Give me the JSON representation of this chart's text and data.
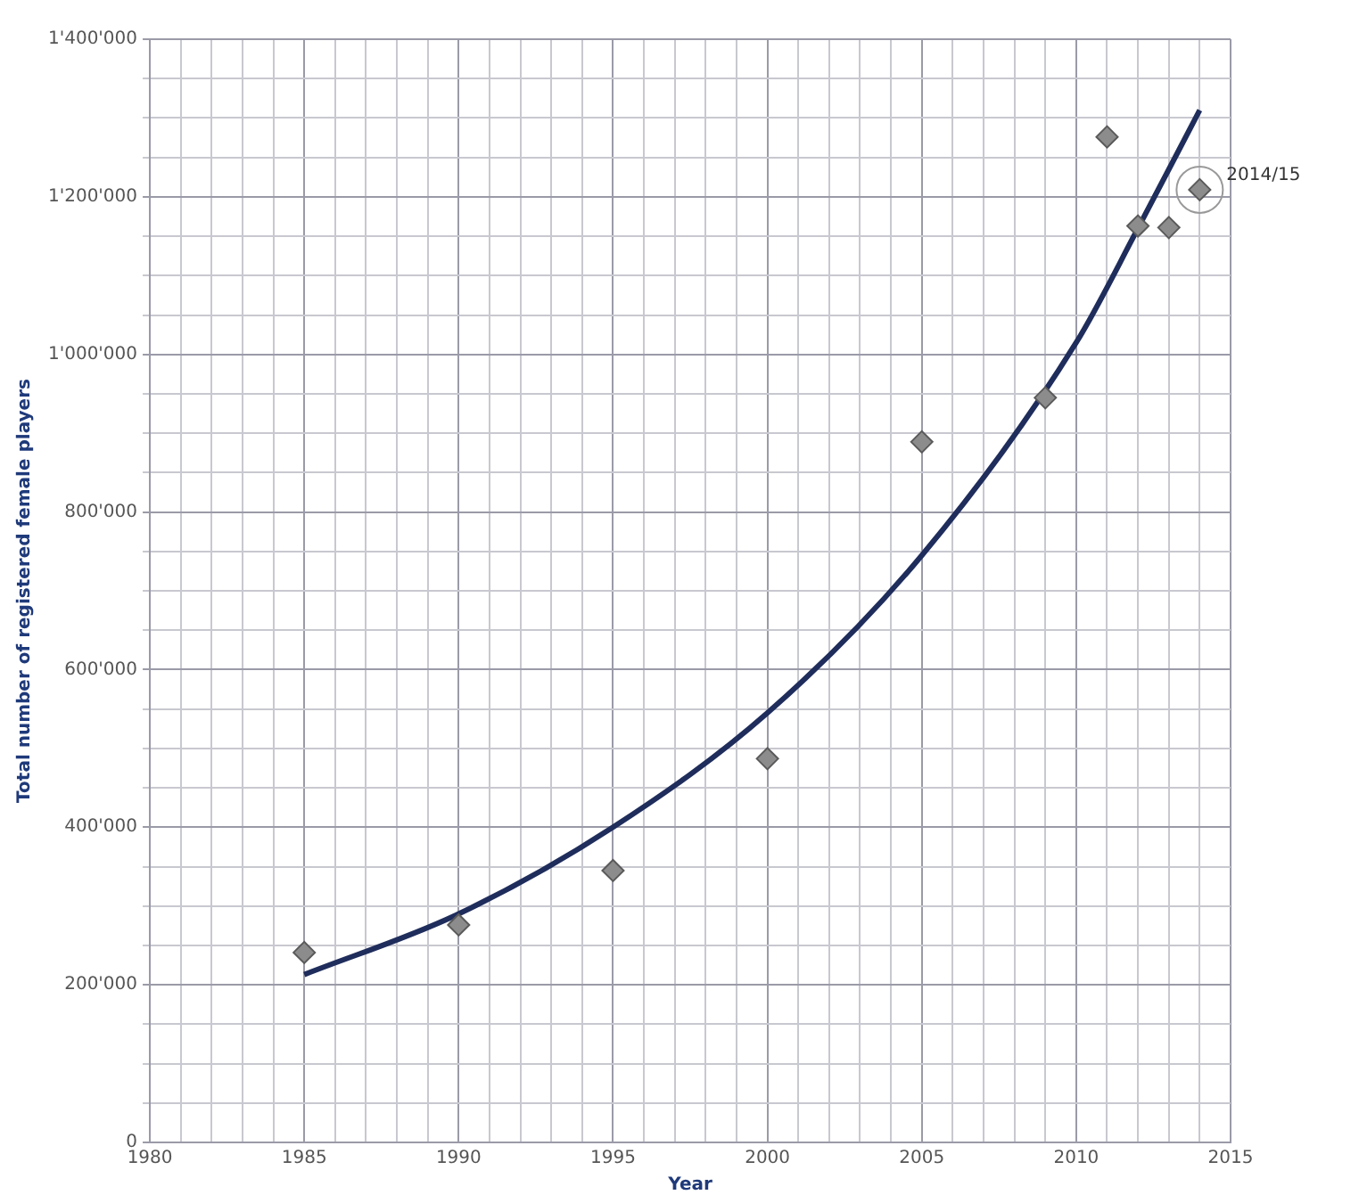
{
  "chart_data": {
    "type": "scatter",
    "xlabel": "Year",
    "ylabel": "Total number of registered female players",
    "xlim": [
      1980,
      2015
    ],
    "xticks": [
      1980,
      {
        "value": 1981,
        "label": null
      },
      {
        "value": 1982,
        "label": null
      },
      {
        "value": 1983,
        "label": null
      },
      {
        "value": 1984,
        "label": null
      },
      1985,
      {
        "value": 1986,
        "label": null
      },
      {
        "value": 1987,
        "label": null
      },
      {
        "value": 1988,
        "label": null
      },
      {
        "value": 1989,
        "label": null
      },
      1990,
      {
        "value": 1991,
        "label": null
      },
      {
        "value": 1992,
        "label": null
      },
      {
        "value": 1993,
        "label": null
      },
      {
        "value": 1994,
        "label": null
      },
      1995,
      {
        "value": 1996,
        "label": null
      },
      {
        "value": 1997,
        "label": null
      },
      {
        "value": 1998,
        "label": null
      },
      {
        "value": 1999,
        "label": null
      },
      2000,
      {
        "value": 2001,
        "label": null
      },
      {
        "value": 2002,
        "label": null
      },
      {
        "value": 2003,
        "label": null
      },
      {
        "value": 2004,
        "label": null
      },
      2005,
      {
        "value": 2006,
        "label": null
      },
      {
        "value": 2007,
        "label": null
      },
      {
        "value": 2008,
        "label": null
      },
      {
        "value": 2009,
        "label": null
      },
      2010,
      {
        "value": 2011,
        "label": null
      },
      {
        "value": 2012,
        "label": null
      },
      {
        "value": 2013,
        "label": null
      },
      {
        "value": 2014,
        "label": null
      },
      2015
    ],
    "ylim": [
      0,
      1400000
    ],
    "yticks": [
      0,
      {
        "value": 50000,
        "label": null
      },
      {
        "value": 100000,
        "label": null
      },
      {
        "value": 150000,
        "label": null
      },
      {
        "value": 200000,
        "label": "200'000"
      },
      {
        "value": 250000,
        "label": null
      },
      {
        "value": 300000,
        "label": null
      },
      {
        "value": 350000,
        "label": null
      },
      {
        "value": 400000,
        "label": "400'000"
      },
      {
        "value": 450000,
        "label": null
      },
      {
        "value": 500000,
        "label": null
      },
      {
        "value": 550000,
        "label": null
      },
      {
        "value": 600000,
        "label": "600'000"
      },
      {
        "value": 650000,
        "label": null
      },
      {
        "value": 700000,
        "label": null
      },
      {
        "value": 750000,
        "label": null
      },
      {
        "value": 800000,
        "label": "800'000"
      },
      {
        "value": 850000,
        "label": null
      },
      {
        "value": 900000,
        "label": null
      },
      {
        "value": 950000,
        "label": null
      },
      {
        "value": 1000000,
        "label": "1'000'000"
      },
      {
        "value": 1050000,
        "label": null
      },
      {
        "value": 1100000,
        "label": null
      },
      {
        "value": 1150000,
        "label": null
      },
      {
        "value": 1200000,
        "label": "1'200'000"
      },
      {
        "value": 1250000,
        "label": null
      },
      {
        "value": 1300000,
        "label": null
      },
      {
        "value": 1350000,
        "label": null
      },
      {
        "value": 1400000,
        "label": "1'400'000"
      }
    ],
    "grid": true,
    "legend": false,
    "series": [
      {
        "marker": "diamond",
        "color": "#8c8c8c",
        "x": [
          1985,
          1990,
          1995,
          2000,
          2005,
          2009,
          2011,
          2012,
          2013,
          2014
        ],
        "values": [
          241000,
          276000,
          345000,
          487000,
          889000,
          945000,
          1276000,
          1163000,
          1161000,
          1209000
        ]
      },
      {
        "type": "line",
        "marker": "none",
        "line_style": "solid",
        "color": "#1f2d5c",
        "x": [
          1985,
          1990,
          1995,
          2000,
          2005,
          2010,
          2012,
          2014
        ],
        "values": [
          213000,
          290000,
          400000,
          545000,
          745000,
          1015000,
          1160000,
          1310000
        ]
      }
    ],
    "annotations": [
      {
        "text": "2014/15",
        "x": 2014,
        "y": 1209000
      }
    ]
  }
}
